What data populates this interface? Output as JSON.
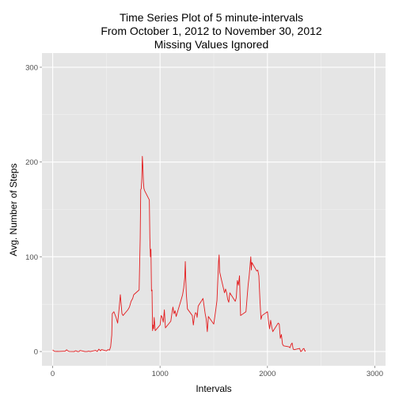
{
  "chart_data": {
    "type": "line",
    "title_lines": [
      "Time Series Plot of 5 minute-intervals",
      "From October 1, 2012 to November 30, 2012",
      "Missing Values Ignored"
    ],
    "xlabel": "Intervals",
    "ylabel": "Avg. Number of Steps",
    "xlim": [
      -100,
      3100
    ],
    "ylim": [
      -15,
      315
    ],
    "x_ticks": [
      0,
      1000,
      2000,
      3000
    ],
    "x_tick_labels": [
      "0",
      "1000",
      "2000",
      "3000"
    ],
    "y_ticks": [
      0,
      100,
      200,
      300
    ],
    "y_tick_labels": [
      "0",
      "100",
      "200",
      "300"
    ],
    "grid": true,
    "colors": {
      "panel_background": "#e5e5e5",
      "grid_major": "#ffffff",
      "grid_minor": "#f2f2f2",
      "series": "#e31a1c"
    },
    "series": [
      {
        "points": [
          [
            0,
            1.7
          ],
          [
            15,
            0.3
          ],
          [
            30,
            0.1
          ],
          [
            45,
            0.2
          ],
          [
            55,
            0.1
          ],
          [
            100,
            0.3
          ],
          [
            115,
            0.3
          ],
          [
            130,
            1.8
          ],
          [
            145,
            0.4
          ],
          [
            155,
            0.1
          ],
          [
            200,
            0
          ],
          [
            215,
            0.9
          ],
          [
            230,
            0
          ],
          [
            245,
            0
          ],
          [
            255,
            1.1
          ],
          [
            300,
            0
          ],
          [
            320,
            0
          ],
          [
            335,
            0.4
          ],
          [
            350,
            0
          ],
          [
            400,
            1.2
          ],
          [
            415,
            0
          ],
          [
            430,
            2.5
          ],
          [
            445,
            0.7
          ],
          [
            455,
            2.1
          ],
          [
            500,
            0.7
          ],
          [
            515,
            2
          ],
          [
            530,
            1.6
          ],
          [
            540,
            5.4
          ],
          [
            550,
            17.3
          ],
          [
            555,
            40
          ],
          [
            570,
            42
          ],
          [
            590,
            36
          ],
          [
            605,
            30
          ],
          [
            620,
            47
          ],
          [
            630,
            60
          ],
          [
            645,
            40
          ],
          [
            655,
            38
          ],
          [
            700,
            44
          ],
          [
            715,
            47
          ],
          [
            730,
            53
          ],
          [
            745,
            56
          ],
          [
            755,
            60
          ],
          [
            805,
            65
          ],
          [
            815,
            120
          ],
          [
            820,
            171
          ],
          [
            825,
            172
          ],
          [
            830,
            183
          ],
          [
            835,
            206
          ],
          [
            840,
            195
          ],
          [
            845,
            179
          ],
          [
            850,
            172
          ],
          [
            855,
            170
          ],
          [
            900,
            160
          ],
          [
            905,
            120
          ],
          [
            910,
            100
          ],
          [
            915,
            108
          ],
          [
            920,
            64
          ],
          [
            925,
            65
          ],
          [
            930,
            22
          ],
          [
            935,
            28
          ],
          [
            940,
            24
          ],
          [
            945,
            36
          ],
          [
            955,
            22
          ],
          [
            1000,
            28
          ],
          [
            1010,
            38
          ],
          [
            1020,
            36
          ],
          [
            1030,
            31
          ],
          [
            1040,
            44
          ],
          [
            1050,
            25
          ],
          [
            1100,
            32
          ],
          [
            1110,
            40
          ],
          [
            1120,
            47
          ],
          [
            1130,
            40
          ],
          [
            1140,
            43
          ],
          [
            1150,
            37
          ],
          [
            1200,
            56
          ],
          [
            1210,
            60
          ],
          [
            1220,
            67
          ],
          [
            1230,
            78
          ],
          [
            1235,
            95
          ],
          [
            1240,
            75
          ],
          [
            1245,
            60
          ],
          [
            1255,
            45
          ],
          [
            1300,
            38
          ],
          [
            1310,
            28
          ],
          [
            1320,
            37
          ],
          [
            1330,
            41
          ],
          [
            1340,
            40
          ],
          [
            1345,
            36
          ],
          [
            1355,
            48
          ],
          [
            1400,
            56
          ],
          [
            1410,
            48
          ],
          [
            1420,
            40
          ],
          [
            1430,
            34
          ],
          [
            1440,
            21
          ],
          [
            1450,
            37
          ],
          [
            1500,
            29
          ],
          [
            1510,
            37
          ],
          [
            1520,
            45
          ],
          [
            1530,
            54
          ],
          [
            1545,
            95
          ],
          [
            1550,
            102
          ],
          [
            1555,
            84
          ],
          [
            1600,
            62
          ],
          [
            1610,
            66
          ],
          [
            1620,
            62
          ],
          [
            1630,
            55
          ],
          [
            1640,
            52
          ],
          [
            1650,
            62
          ],
          [
            1700,
            53
          ],
          [
            1710,
            57
          ],
          [
            1720,
            75
          ],
          [
            1730,
            70
          ],
          [
            1740,
            80
          ],
          [
            1750,
            38
          ],
          [
            1800,
            42
          ],
          [
            1810,
            56
          ],
          [
            1820,
            70
          ],
          [
            1830,
            80
          ],
          [
            1845,
            100
          ],
          [
            1850,
            86
          ],
          [
            1855,
            94
          ],
          [
            1900,
            85
          ],
          [
            1910,
            86
          ],
          [
            1920,
            80
          ],
          [
            1930,
            55
          ],
          [
            1940,
            34
          ],
          [
            1950,
            38
          ],
          [
            2000,
            42
          ],
          [
            2010,
            32
          ],
          [
            2020,
            24
          ],
          [
            2030,
            33
          ],
          [
            2040,
            26
          ],
          [
            2050,
            21
          ],
          [
            2100,
            30
          ],
          [
            2110,
            29
          ],
          [
            2120,
            14
          ],
          [
            2130,
            18
          ],
          [
            2140,
            8
          ],
          [
            2150,
            6
          ],
          [
            2200,
            5
          ],
          [
            2210,
            4
          ],
          [
            2220,
            7.4
          ],
          [
            2230,
            9
          ],
          [
            2240,
            2.5
          ],
          [
            2250,
            2
          ],
          [
            2300,
            3.3
          ],
          [
            2310,
            0
          ],
          [
            2320,
            0.6
          ],
          [
            2330,
            2.6
          ],
          [
            2340,
            3.3
          ],
          [
            2350,
            0.3
          ],
          [
            2355,
            1.1
          ]
        ]
      }
    ]
  }
}
